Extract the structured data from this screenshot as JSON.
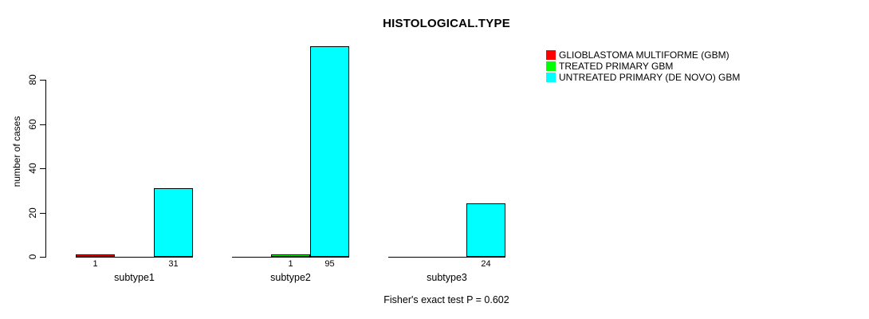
{
  "chart_data": {
    "type": "bar",
    "title": "HISTOLOGICAL.TYPE",
    "ylabel": "number of cases",
    "xlabel": "",
    "categories": [
      "subtype1",
      "subtype2",
      "subtype3"
    ],
    "series": [
      {
        "name": "GLIOBLASTOMA MULTIFORME (GBM)",
        "color": "#ff0000",
        "values": [
          1,
          0,
          0
        ]
      },
      {
        "name": "TREATED PRIMARY GBM",
        "color": "#00ff00",
        "values": [
          0,
          1,
          0
        ]
      },
      {
        "name": "UNTREATED PRIMARY (DE NOVO) GBM",
        "color": "#00ffff",
        "values": [
          31,
          95,
          24
        ]
      }
    ],
    "bar_value_labels": [
      [
        "1",
        "",
        ""
      ],
      [
        "",
        "1",
        ""
      ],
      [
        "31",
        "95",
        "24"
      ]
    ],
    "yticks": [
      0,
      20,
      40,
      60,
      80
    ],
    "ylim": [
      0,
      80
    ],
    "grid": false,
    "legend_position": "top-right",
    "annotation": "Fisher's exact test P = 0.602"
  },
  "colors": {
    "background": "#ffffff",
    "axis": "#000000",
    "text": "#000000"
  }
}
